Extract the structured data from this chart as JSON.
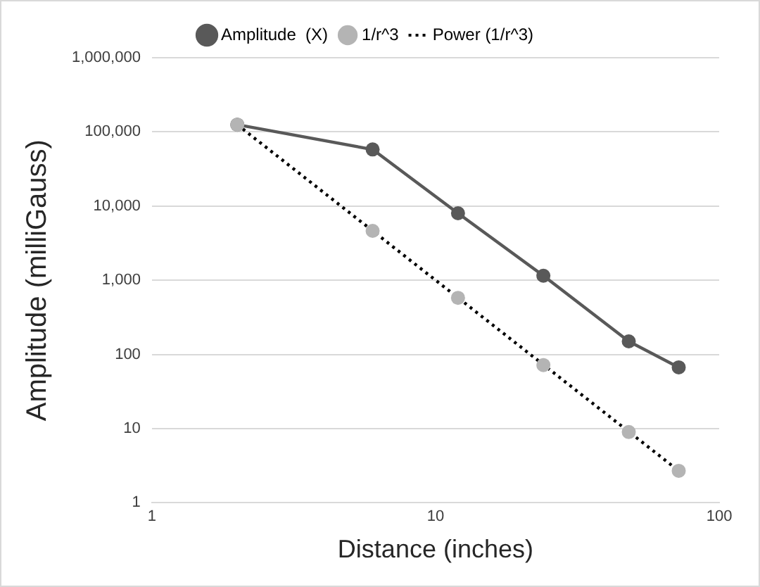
{
  "chart_data": {
    "type": "line",
    "xlabel": "Distance (inches)",
    "ylabel": "Amplitude (milliGauss)",
    "log": "xy",
    "grid": "y",
    "legend": "top",
    "xlim": [
      1,
      100
    ],
    "xticks": [
      1,
      10,
      100
    ],
    "ylim": [
      1,
      1000000
    ],
    "yticks": [
      1,
      10,
      100,
      {
        "value": 1000,
        "label": "1,000"
      },
      {
        "value": 10000,
        "label": "10,000"
      },
      {
        "value": 100000,
        "label": "100,000"
      },
      {
        "value": 1000000,
        "label": "1,000,000"
      }
    ],
    "series": [
      {
        "name": "Amplitude  (X)",
        "type": "line",
        "marker": "circle",
        "color": "#595959",
        "x": [
          2,
          6,
          12,
          24,
          48,
          72
        ],
        "values": [
          125000,
          58000,
          8000,
          1150,
          150,
          67
        ]
      },
      {
        "name": "1/r^3",
        "type": "scatter",
        "marker": "circle",
        "color": "#b4b4b4",
        "x": [
          2,
          6,
          12,
          24,
          48,
          72
        ],
        "values": [
          125000,
          4630,
          580,
          72,
          9,
          2.7
        ]
      },
      {
        "name": "Power (1/r^3)",
        "type": "line",
        "marker": "none",
        "line_style": "dotted",
        "color": "#000000",
        "x": [
          2,
          72
        ],
        "values": [
          125000,
          2.7
        ]
      }
    ]
  }
}
